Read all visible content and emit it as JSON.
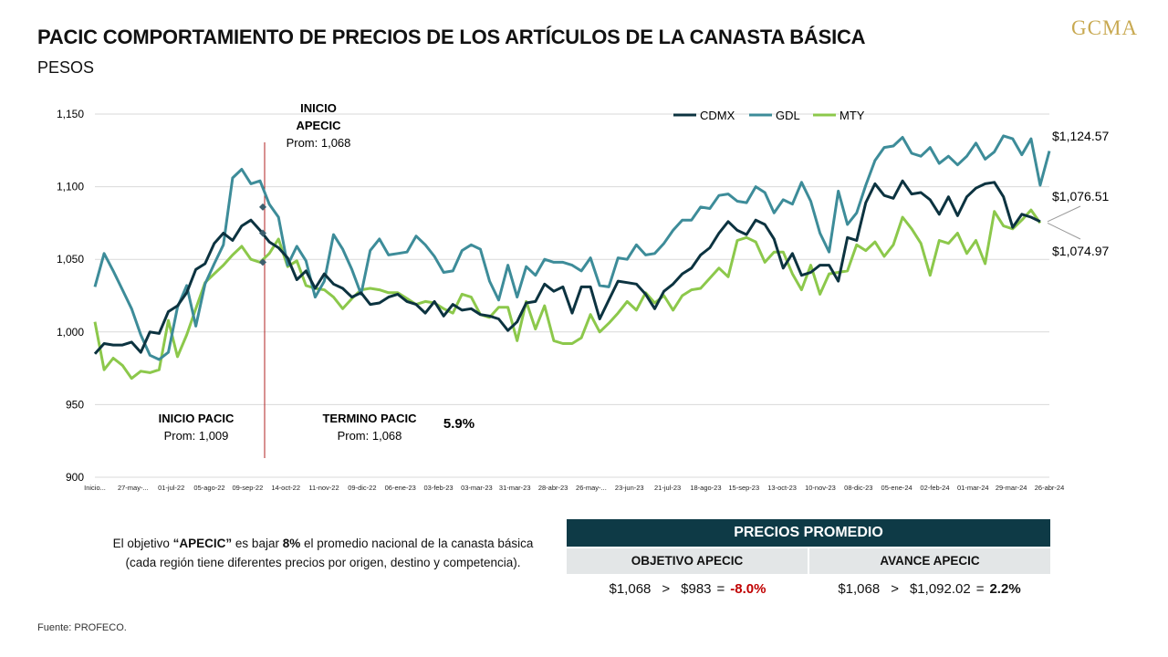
{
  "header": {
    "title": "PACIC COMPORTAMIENTO DE PRECIOS DE LOS ARTÍCULOS DE LA CANASTA BÁSICA",
    "subtitle": "PESOS",
    "logo": "GCMA"
  },
  "colors": {
    "CDMX": "#0c3340",
    "GDL": "#3d8c99",
    "MTY": "#8cc84b",
    "marker": "#b22222",
    "panel": "#0e3a46",
    "negative": "#c00000"
  },
  "chart_data": {
    "type": "line",
    "ylim": [
      900,
      1150
    ],
    "yticks": [
      "900",
      "950",
      "1,000",
      "1,050",
      "1,100",
      "1,150"
    ],
    "grid": true,
    "legend_position": "top-right",
    "xtick_labels": [
      "Inicio...",
      "27-may-...",
      "01-jul-22",
      "05-ago-22",
      "09-sep-22",
      "14-oct-22",
      "11-nov-22",
      "09-dic-22",
      "06-ene-23",
      "03-feb-23",
      "03-mar-23",
      "31-mar-23",
      "28-abr-23",
      "26-may-...",
      "23-jun-23",
      "21-jul-23",
      "18-ago-23",
      "15-sep-23",
      "13-oct-23",
      "10-nov-23",
      "08-dic-23",
      "05-ene-24",
      "02-feb-24",
      "01-mar-24",
      "29-mar-24",
      "26-abr-24"
    ],
    "series": [
      {
        "name": "CDMX",
        "values": [
          985,
          992,
          991,
          991,
          993,
          986,
          1000,
          999,
          1014,
          1018,
          1027,
          1043,
          1047,
          1061,
          1068,
          1063,
          1073,
          1077,
          1070,
          1062,
          1058,
          1051,
          1036,
          1042,
          1030,
          1040,
          1033,
          1030,
          1024,
          1027,
          1019,
          1020,
          1024,
          1026,
          1021,
          1019,
          1013,
          1021,
          1011,
          1019,
          1015,
          1016,
          1012,
          1011,
          1009,
          1001,
          1007,
          1020,
          1021,
          1033,
          1028,
          1031,
          1013,
          1031,
          1031,
          1009,
          1022,
          1035,
          1034,
          1033,
          1026,
          1016,
          1028,
          1033,
          1040,
          1044,
          1053,
          1058,
          1068,
          1076,
          1070,
          1067,
          1077,
          1074,
          1064,
          1044,
          1054,
          1039,
          1041,
          1046,
          1046,
          1035,
          1065,
          1063,
          1089,
          1102,
          1094,
          1092,
          1104,
          1095,
          1096,
          1091,
          1081,
          1093,
          1080,
          1093,
          1099,
          1102,
          1103,
          1093,
          1072,
          1081,
          1079,
          1076
        ],
        "last_label": "$1,076.51"
      },
      {
        "name": "GDL",
        "values": [
          1031,
          1054,
          1042,
          1029,
          1016,
          998,
          984,
          981,
          986,
          1017,
          1032,
          1004,
          1033,
          1047,
          1060,
          1106,
          1112,
          1102,
          1104,
          1088,
          1079,
          1046,
          1059,
          1049,
          1024,
          1035,
          1067,
          1057,
          1043,
          1026,
          1056,
          1064,
          1053,
          1054,
          1055,
          1066,
          1060,
          1052,
          1041,
          1042,
          1056,
          1060,
          1057,
          1035,
          1022,
          1046,
          1024,
          1045,
          1039,
          1050,
          1048,
          1048,
          1046,
          1042,
          1051,
          1032,
          1031,
          1051,
          1050,
          1060,
          1053,
          1054,
          1061,
          1070,
          1077,
          1077,
          1086,
          1085,
          1094,
          1095,
          1090,
          1089,
          1100,
          1096,
          1082,
          1091,
          1088,
          1103,
          1090,
          1068,
          1055,
          1097,
          1074,
          1082,
          1101,
          1118,
          1127,
          1128,
          1134,
          1123,
          1121,
          1127,
          1116,
          1121,
          1115,
          1121,
          1130,
          1119,
          1124,
          1135,
          1133,
          1122,
          1133,
          1101,
          1124.57
        ],
        "last_label": "$1,124.57"
      },
      {
        "name": "MTY",
        "values": [
          1007,
          974,
          982,
          977,
          968,
          973,
          972,
          974,
          1008,
          983,
          998,
          1016,
          1034,
          1040,
          1046,
          1053,
          1059,
          1050,
          1048,
          1054,
          1064,
          1045,
          1049,
          1032,
          1030,
          1029,
          1024,
          1016,
          1023,
          1029,
          1030,
          1029,
          1027,
          1027,
          1023,
          1019,
          1021,
          1020,
          1016,
          1013,
          1026,
          1024,
          1012,
          1010,
          1017,
          1017,
          994,
          1021,
          1002,
          1018,
          994,
          992,
          992,
          996,
          1012,
          1000,
          1006,
          1013,
          1021,
          1015,
          1027,
          1020,
          1025,
          1015,
          1025,
          1029,
          1030,
          1037,
          1044,
          1038,
          1063,
          1065,
          1062,
          1048,
          1055,
          1055,
          1040,
          1029,
          1046,
          1026,
          1040,
          1041,
          1042,
          1060,
          1056,
          1062,
          1052,
          1060,
          1079,
          1071,
          1061,
          1039,
          1063,
          1061,
          1068,
          1054,
          1063,
          1047,
          1083,
          1073,
          1071,
          1077,
          1084,
          1075
        ],
        "last_label": "$1,074.97"
      }
    ],
    "annotations": {
      "inicio_apecic": {
        "line1": "INICIO",
        "line2": "APECIC",
        "line3": "Prom:  1,068"
      },
      "inicio_pacic": {
        "title": "INICIO PACIC",
        "value": "Prom:  1,009"
      },
      "termino_pacic": {
        "title": "TERMINO PACIC",
        "value": "Prom:  1,068"
      },
      "pacic_change": "5.9%"
    }
  },
  "note": {
    "prefix": "El objetivo ",
    "term": "“APECIC”",
    "mid": " es bajar ",
    "pct": "8%",
    "suffix": " el promedio  nacional de la canasta básica (cada región tiene diferentes precios por origen, destino y competencia)."
  },
  "source": "Fuente:  PROFECO.",
  "panel": {
    "header": "PRECIOS PROMEDIO",
    "col_left": "OBJETIVO APECIC",
    "col_right": "AVANCE APECIC",
    "left": {
      "a": "$1,068",
      "op1": ">",
      "b": "$983",
      "op2": "=",
      "result": "-8.0%"
    },
    "right": {
      "a": "$1,068",
      "op1": ">",
      "b": "$1,092.02",
      "op2": "=",
      "result": "2.2%"
    }
  }
}
